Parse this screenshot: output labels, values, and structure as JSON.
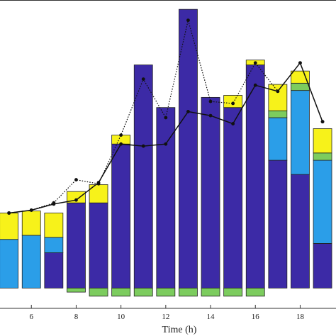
{
  "chart_data": {
    "type": "bar",
    "stacked": true,
    "xlabel": "Time (h)",
    "ylabel": "",
    "xlim": [
      4.6,
      19.6
    ],
    "ylim": [
      -0.5,
      7.1
    ],
    "x_ticks": [
      6,
      8,
      10,
      12,
      14,
      16,
      18
    ],
    "x": [
      5,
      6,
      7,
      8,
      9,
      10,
      11,
      12,
      13,
      14,
      15,
      16,
      17,
      18,
      19
    ],
    "legend": "none",
    "grid": false,
    "colors": {
      "dark_blue": "#3c2aa6",
      "light_blue": "#2b9ee8",
      "green": "#7ccc5e",
      "yellow": "#f7f21a",
      "line": "#111111",
      "axes": "#333333"
    },
    "series": [
      {
        "type": "bar",
        "color": "dark_blue",
        "values": [
          0,
          0,
          0.87,
          2.1,
          2.1,
          3.55,
          5.5,
          4.45,
          6.87,
          4.7,
          4.45,
          5.5,
          3.15,
          2.8,
          1.1
        ]
      },
      {
        "type": "bar",
        "color": "light_blue",
        "values": [
          1.2,
          1.3,
          0.38,
          0,
          0,
          0,
          0,
          0,
          0,
          0,
          0,
          0,
          1.05,
          2.07,
          2.05
        ]
      },
      {
        "type": "bar",
        "color": "green",
        "values": [
          0,
          0,
          0,
          0,
          0,
          0,
          0,
          0,
          0,
          0,
          0,
          0,
          0.17,
          0.18,
          0.18
        ]
      },
      {
        "type": "bar",
        "color": "yellow",
        "values": [
          0.65,
          0.6,
          0.6,
          0.28,
          0.45,
          0.22,
          0,
          0,
          0,
          0,
          0.3,
          0.12,
          0.65,
          0.3,
          0.6
        ]
      },
      {
        "type": "bar",
        "color": "green",
        "negative": true,
        "values": [
          0,
          0,
          0,
          -0.1,
          -0.2,
          -0.2,
          -0.2,
          -0.2,
          -0.2,
          -0.2,
          -0.2,
          -0.2,
          0,
          0,
          0
        ]
      },
      {
        "type": "line",
        "style": "dotted",
        "marker": "dot",
        "values": [
          1.85,
          1.92,
          2.1,
          2.67,
          2.57,
          3.77,
          5.15,
          4.2,
          6.6,
          4.6,
          4.55,
          5.55,
          4.85,
          5.55,
          4.1
        ]
      },
      {
        "type": "line",
        "style": "solid",
        "marker": "dot",
        "values": [
          1.85,
          1.92,
          2.07,
          2.17,
          2.6,
          3.55,
          3.5,
          3.55,
          4.35,
          4.25,
          4.05,
          5.0,
          4.85,
          5.55,
          4.1
        ]
      }
    ]
  }
}
